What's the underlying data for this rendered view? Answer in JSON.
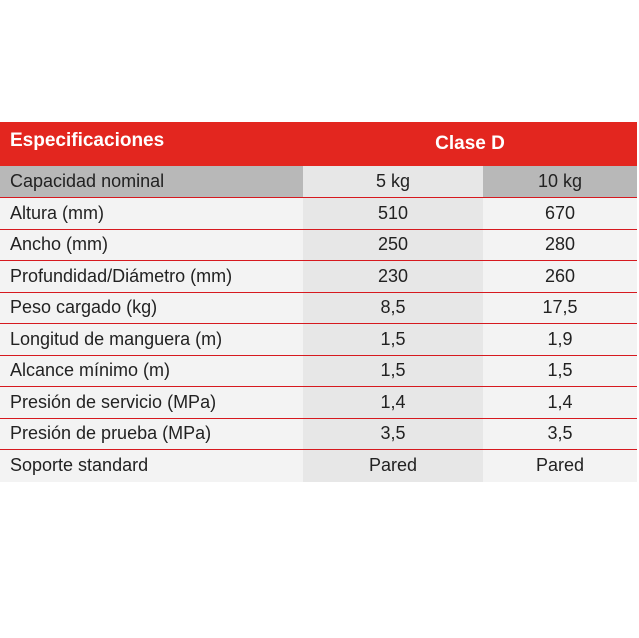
{
  "table": {
    "header": {
      "title": "Especificaciones",
      "class_label": "Clase D"
    },
    "rows": [
      {
        "label": "Capacidad nominal",
        "v1": "5 kg",
        "v2": "10 kg"
      },
      {
        "label": "Altura (mm)",
        "v1": "510",
        "v2": "670"
      },
      {
        "label": "Ancho (mm)",
        "v1": "250",
        "v2": "280"
      },
      {
        "label": "Profundidad/Diámetro (mm)",
        "v1": "230",
        "v2": "260"
      },
      {
        "label": "Peso cargado (kg)",
        "v1": "8,5",
        "v2": "17,5"
      },
      {
        "label": "Longitud de manguera (m)",
        "v1": "1,5",
        "v2": "1,9"
      },
      {
        "label": "Alcance mínimo (m)",
        "v1": "1,5",
        "v2": "1,5"
      },
      {
        "label": "Presión de servicio (MPa)",
        "v1": "1,4",
        "v2": "1,4"
      },
      {
        "label": "Presión de prueba (MPa)",
        "v1": "3,5",
        "v2": "3,5"
      },
      {
        "label": "Soporte standard",
        "v1": "Pared",
        "v2": "Pared"
      }
    ]
  },
  "colors": {
    "header_red": "#e3261f",
    "row_line_red": "#d6191f",
    "first_row_gray": "#b8b8b8",
    "cell_light": "#f3f3f3",
    "cell_mid": "#e7e7e7",
    "text": "#222222"
  }
}
